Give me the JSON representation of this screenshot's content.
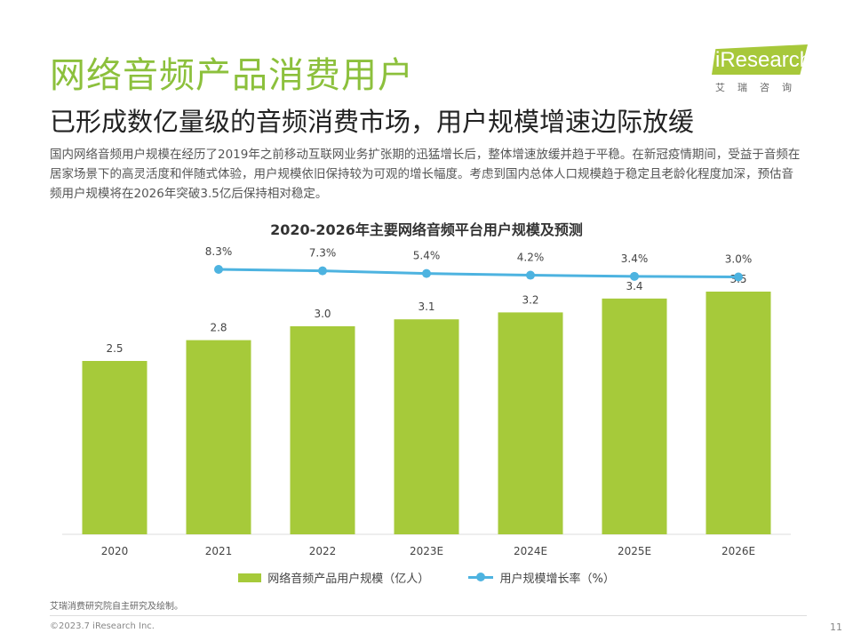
{
  "header": {
    "title": "网络音频产品消费用户",
    "subtitle": "已形成数亿量级的音频消费市场，用户规模增速边际放缓",
    "body": "国内网络音频用户规模在经历了2019年之前移动互联网业务扩张期的迅猛增长后，整体增速放缓并趋于平稳。在新冠疫情期间，受益于音频在居家场景下的高灵活度和伴随式体验，用户规模依旧保持较为可观的增长幅度。考虑到国内总体人口规模趋于稳定且老龄化程度加深，预估音频用户规模将在2026年突破3.5亿后保持相对稳定。"
  },
  "logo": {
    "text": "iResearch",
    "cn": "艾瑞咨询",
    "color": "#a7c83a"
  },
  "chart_data": {
    "type": "bar+line",
    "title": "2020-2026年主要网络音频平台用户规模及预测",
    "categories": [
      "2020",
      "2021",
      "2022",
      "2023E",
      "2024E",
      "2025E",
      "2026E"
    ],
    "series": [
      {
        "name": "网络音频产品用户规模（亿人）",
        "type": "bar",
        "color": "#a6ca3a",
        "values": [
          2.5,
          2.8,
          3.0,
          3.1,
          3.2,
          3.4,
          3.5
        ],
        "labels": [
          "2.5",
          "2.8",
          "3.0",
          "3.1",
          "3.2",
          "3.4",
          "3.5"
        ]
      },
      {
        "name": "用户规模增长率（%）",
        "type": "line",
        "color": "#4db3e0",
        "values": [
          null,
          8.3,
          7.3,
          5.4,
          4.2,
          3.4,
          3.0
        ],
        "labels": [
          "",
          "8.3%",
          "7.3%",
          "5.4%",
          "4.2%",
          "3.4%",
          "3.0%"
        ]
      }
    ],
    "legend": "bottom",
    "grid": false
  },
  "footer": {
    "source": "艾瑞消费研究院自主研究及绘制。",
    "copyright": "©2023.7 iResearch Inc.",
    "page": "11"
  }
}
